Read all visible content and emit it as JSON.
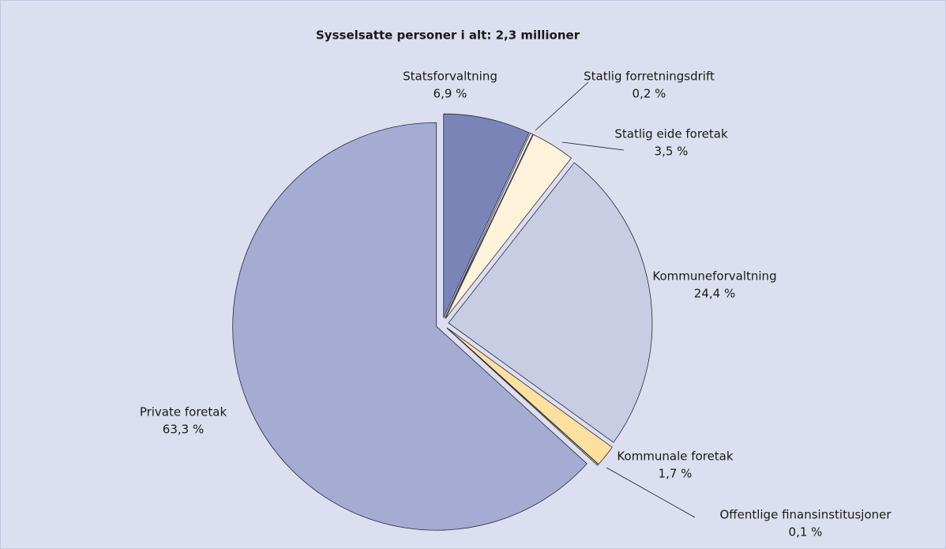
{
  "chart_data": {
    "type": "pie",
    "title": "Sysselsatte personer i alt: 2,3 millioner",
    "categories": [
      "Statsforvaltning",
      "Statlig forretningsdrift",
      "Statlig eide foretak",
      "Kommuneforvaltning",
      "Kommunale foretak",
      "Offentlige finansinstitusjoner",
      "Private foretak"
    ],
    "values": [
      6.9,
      0.2,
      3.5,
      24.4,
      1.7,
      0.1,
      63.3
    ],
    "value_labels": [
      "6,9 %",
      "0,2 %",
      "3,5 %",
      "24,4 %",
      "1,7 %",
      "0,1 %",
      "63,3 %"
    ],
    "colors": [
      "#7a84b6",
      "#fdf4dc",
      "#fdf3da",
      "#c9cde4",
      "#fbe09e",
      "#fbe6ad",
      "#a5abd1"
    ]
  }
}
